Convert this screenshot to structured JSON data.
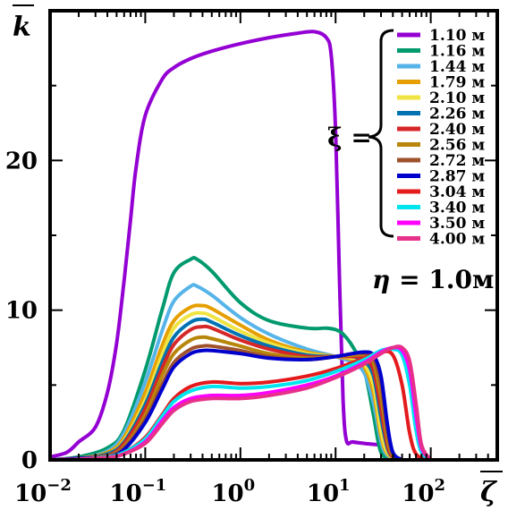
{
  "chart_data": {
    "type": "line",
    "title": "",
    "xlabel": "ζ",
    "ylabel": "k",
    "xscale": "log",
    "xlim": [
      0.01,
      500
    ],
    "ylim": [
      0,
      30
    ],
    "grid": false,
    "legend_position": "top-right",
    "x_tick_labels": [
      {
        "base": "10",
        "exp": "−2",
        "value": 0.01
      },
      {
        "base": "10",
        "exp": "−1",
        "value": 0.1
      },
      {
        "base": "10",
        "exp": "0",
        "value": 1
      },
      {
        "base": "10",
        "exp": "1",
        "value": 10
      },
      {
        "base": "10",
        "exp": "2",
        "value": 100
      }
    ],
    "y_tick_labels": [
      {
        "label": "0",
        "value": 0
      },
      {
        "label": "10",
        "value": 10
      },
      {
        "label": "20",
        "value": 20
      }
    ],
    "legend_prefix": "ξ =",
    "annotation": {
      "symbol": "η",
      "text": " = 1.0м"
    },
    "series": [
      {
        "name": "1.10 м",
        "color": "#9400d3",
        "x": [
          0.01,
          0.015,
          0.02,
          0.03,
          0.04,
          0.05,
          0.06,
          0.07,
          0.08,
          0.1,
          0.15,
          0.2,
          0.3,
          0.5,
          1,
          2,
          4,
          6,
          8,
          9,
          10,
          11,
          12,
          13,
          15,
          20,
          30
        ],
        "y": [
          0.2,
          0.5,
          1.2,
          2.2,
          4.5,
          7.8,
          12,
          16,
          19.5,
          23,
          25.4,
          26.2,
          26.8,
          27.3,
          27.8,
          28.2,
          28.5,
          28.6,
          28.2,
          27,
          22,
          12,
          4,
          1.3,
          1.2,
          1.1,
          1.0
        ]
      },
      {
        "name": "1.16 м",
        "color": "#009a6e",
        "x": [
          0.01,
          0.02,
          0.04,
          0.06,
          0.1,
          0.15,
          0.2,
          0.3,
          0.35,
          0.5,
          1,
          2,
          5,
          8,
          10,
          12,
          15,
          20,
          25,
          30,
          40
        ],
        "y": [
          0,
          0.2,
          0.8,
          2,
          6,
          10,
          12.5,
          13.4,
          13.4,
          12.6,
          10.5,
          9.3,
          8.8,
          8.8,
          8.7,
          8.4,
          7.6,
          6,
          3,
          0.5,
          0
        ]
      },
      {
        "name": "1.44 м",
        "color": "#56b4e9",
        "x": [
          0.01,
          0.02,
          0.04,
          0.06,
          0.1,
          0.15,
          0.2,
          0.3,
          0.35,
          0.5,
          1,
          2,
          5,
          10,
          15,
          20,
          25,
          30,
          35,
          45
        ],
        "y": [
          0,
          0.1,
          0.6,
          1.8,
          5.2,
          8.6,
          10.6,
          11.6,
          11.6,
          11.0,
          9.5,
          8.4,
          7.4,
          6.9,
          6.5,
          5.8,
          3.8,
          1.2,
          0.3,
          0
        ]
      },
      {
        "name": "1.79 м",
        "color": "#e69f00",
        "x": [
          0.01,
          0.02,
          0.04,
          0.06,
          0.1,
          0.15,
          0.2,
          0.3,
          0.4,
          0.5,
          1,
          2,
          5,
          10,
          15,
          20,
          25,
          30,
          35,
          45
        ],
        "y": [
          0,
          0.1,
          0.5,
          1.5,
          4.5,
          7.6,
          9.3,
          10.2,
          10.3,
          10.1,
          9.0,
          8.0,
          7.2,
          6.9,
          6.7,
          6.2,
          4.5,
          1.6,
          0.4,
          0
        ]
      },
      {
        "name": "2.10 м",
        "color": "#f0e442",
        "x": [
          0.01,
          0.02,
          0.04,
          0.06,
          0.1,
          0.15,
          0.2,
          0.3,
          0.4,
          0.5,
          1,
          2,
          5,
          10,
          15,
          20,
          25,
          30,
          35,
          45
        ],
        "y": [
          0,
          0.1,
          0.4,
          1.3,
          4,
          7,
          8.8,
          9.7,
          9.8,
          9.6,
          8.6,
          7.8,
          7.1,
          6.9,
          6.8,
          6.4,
          5.0,
          2.0,
          0.5,
          0
        ]
      },
      {
        "name": "2.26 м",
        "color": "#0072b2",
        "x": [
          0.01,
          0.02,
          0.04,
          0.06,
          0.1,
          0.15,
          0.2,
          0.3,
          0.4,
          0.5,
          1,
          2,
          5,
          10,
          15,
          20,
          25,
          30,
          35,
          40,
          50
        ],
        "y": [
          0,
          0.1,
          0.4,
          1.2,
          3.7,
          6.5,
          8.2,
          9.2,
          9.4,
          9.2,
          8.3,
          7.6,
          7.0,
          6.9,
          6.9,
          6.6,
          5.6,
          2.8,
          0.8,
          0.2,
          0
        ]
      },
      {
        "name": "2.40 м",
        "color": "#d62728",
        "x": [
          0.01,
          0.02,
          0.04,
          0.06,
          0.1,
          0.15,
          0.2,
          0.3,
          0.4,
          0.5,
          1,
          2,
          5,
          10,
          15,
          20,
          25,
          30,
          35,
          40,
          50
        ],
        "y": [
          0,
          0.1,
          0.3,
          1.1,
          3.4,
          6.1,
          7.7,
          8.7,
          8.9,
          8.8,
          8.0,
          7.4,
          6.9,
          6.9,
          6.9,
          6.8,
          6.0,
          3.4,
          1.0,
          0.2,
          0
        ]
      },
      {
        "name": "2.56 м",
        "color": "#b8860b",
        "x": [
          0.01,
          0.02,
          0.04,
          0.06,
          0.1,
          0.15,
          0.2,
          0.3,
          0.4,
          0.5,
          1,
          2,
          5,
          10,
          15,
          20,
          25,
          30,
          35,
          40,
          50
        ],
        "y": [
          0,
          0.1,
          0.3,
          0.9,
          3.0,
          5.6,
          7.1,
          8.0,
          8.2,
          8.1,
          7.6,
          7.1,
          6.8,
          6.9,
          7.0,
          7.0,
          6.5,
          4.2,
          1.4,
          0.3,
          0
        ]
      },
      {
        "name": "2.72 м",
        "color": "#a0522d",
        "x": [
          0.01,
          0.02,
          0.04,
          0.06,
          0.1,
          0.15,
          0.2,
          0.3,
          0.4,
          0.5,
          1,
          2,
          5,
          10,
          15,
          20,
          25,
          30,
          35,
          40,
          50
        ],
        "y": [
          0,
          0.1,
          0.3,
          0.8,
          2.7,
          5.0,
          6.5,
          7.4,
          7.6,
          7.6,
          7.3,
          6.9,
          6.7,
          6.9,
          7.1,
          7.1,
          6.8,
          5.0,
          1.9,
          0.4,
          0
        ]
      },
      {
        "name": "2.87 м",
        "color": "#0000cd",
        "x": [
          0.01,
          0.02,
          0.04,
          0.06,
          0.1,
          0.15,
          0.2,
          0.3,
          0.4,
          0.5,
          1,
          2,
          5,
          10,
          15,
          20,
          25,
          30,
          35,
          40,
          50
        ],
        "y": [
          0,
          0.1,
          0.2,
          0.7,
          2.5,
          4.7,
          6.2,
          7.1,
          7.3,
          7.3,
          7.1,
          6.8,
          6.7,
          6.9,
          7.1,
          7.2,
          7.0,
          5.6,
          2.4,
          0.5,
          0
        ]
      },
      {
        "name": "3.04 м",
        "color": "#e41a1c",
        "x": [
          0.01,
          0.02,
          0.04,
          0.06,
          0.1,
          0.15,
          0.2,
          0.3,
          0.5,
          1,
          2,
          5,
          10,
          20,
          30,
          40,
          50,
          60,
          70,
          90
        ],
        "y": [
          0,
          0.05,
          0.2,
          0.5,
          1.5,
          3.0,
          4.1,
          4.9,
          5.2,
          5.1,
          5.2,
          5.6,
          6.1,
          6.8,
          7.2,
          7.0,
          5.0,
          1.8,
          0.4,
          0
        ]
      },
      {
        "name": "3.40 м",
        "color": "#00e5ee",
        "x": [
          0.01,
          0.02,
          0.04,
          0.06,
          0.1,
          0.15,
          0.2,
          0.3,
          0.5,
          1,
          2,
          5,
          10,
          20,
          30,
          40,
          50,
          60,
          70,
          80,
          100
        ],
        "y": [
          0,
          0.05,
          0.2,
          0.5,
          1.4,
          2.9,
          3.9,
          4.6,
          4.9,
          4.8,
          4.9,
          5.3,
          5.9,
          6.7,
          7.3,
          7.4,
          7.0,
          5.0,
          2.0,
          0.5,
          0
        ]
      },
      {
        "name": "3.50 м",
        "color": "#ff00ff",
        "x": [
          0.01,
          0.02,
          0.04,
          0.06,
          0.1,
          0.15,
          0.2,
          0.3,
          0.5,
          1,
          2,
          5,
          10,
          20,
          30,
          40,
          50,
          60,
          70,
          80,
          100
        ],
        "y": [
          0,
          0.05,
          0.15,
          0.4,
          1.2,
          2.6,
          3.5,
          4.1,
          4.3,
          4.3,
          4.5,
          5.0,
          5.6,
          6.5,
          7.2,
          7.5,
          7.3,
          6.0,
          3.0,
          0.8,
          0
        ]
      },
      {
        "name": "4.00 м",
        "color": "#e6308a",
        "x": [
          0.01,
          0.02,
          0.04,
          0.06,
          0.1,
          0.15,
          0.2,
          0.3,
          0.5,
          1,
          2,
          5,
          10,
          20,
          30,
          40,
          50,
          60,
          70,
          80,
          100
        ],
        "y": [
          0,
          0.05,
          0.15,
          0.4,
          1.1,
          2.4,
          3.3,
          3.9,
          4.1,
          4.1,
          4.3,
          4.8,
          5.5,
          6.4,
          7.1,
          7.5,
          7.5,
          6.6,
          3.8,
          1.0,
          0
        ]
      }
    ]
  }
}
